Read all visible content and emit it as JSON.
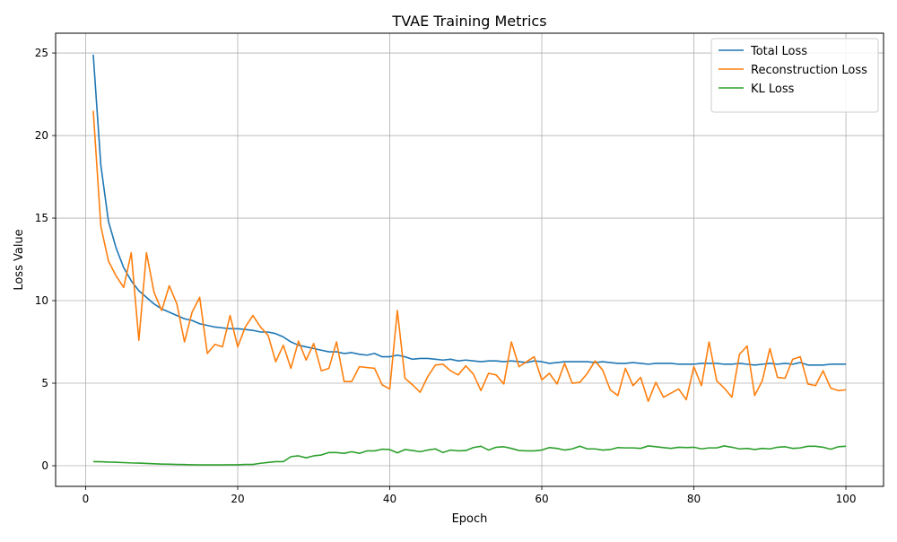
{
  "chart_data": {
    "type": "line",
    "title": "TVAE Training Metrics",
    "xlabel": "Epoch",
    "ylabel": "Loss Value",
    "xlim": [
      -3.95,
      104.95
    ],
    "ylim": [
      -1.25,
      26.2
    ],
    "xticks": [
      0,
      20,
      40,
      60,
      80,
      100
    ],
    "yticks": [
      0,
      5,
      10,
      15,
      20,
      25
    ],
    "grid": true,
    "legend_position": "top-right",
    "x": [
      1,
      2,
      3,
      4,
      5,
      6,
      7,
      8,
      9,
      10,
      11,
      12,
      13,
      14,
      15,
      16,
      17,
      18,
      19,
      20,
      21,
      22,
      23,
      24,
      25,
      26,
      27,
      28,
      29,
      30,
      31,
      32,
      33,
      34,
      35,
      36,
      37,
      38,
      39,
      40,
      41,
      42,
      43,
      44,
      45,
      46,
      47,
      48,
      49,
      50,
      51,
      52,
      53,
      54,
      55,
      56,
      57,
      58,
      59,
      60,
      61,
      62,
      63,
      64,
      65,
      66,
      67,
      68,
      69,
      70,
      71,
      72,
      73,
      74,
      75,
      76,
      77,
      78,
      79,
      80,
      81,
      82,
      83,
      84,
      85,
      86,
      87,
      88,
      89,
      90,
      91,
      92,
      93,
      94,
      95,
      96,
      97,
      98,
      99,
      100
    ],
    "series": [
      {
        "name": "Total Loss",
        "color": "#1f77b4",
        "values": [
          24.9,
          18.2,
          14.8,
          13.2,
          12.0,
          11.2,
          10.6,
          10.2,
          9.8,
          9.5,
          9.3,
          9.1,
          8.9,
          8.8,
          8.6,
          8.5,
          8.4,
          8.35,
          8.3,
          8.3,
          8.25,
          8.2,
          8.1,
          8.1,
          8.0,
          7.8,
          7.5,
          7.3,
          7.2,
          7.1,
          7.0,
          6.9,
          6.9,
          6.8,
          6.85,
          6.75,
          6.7,
          6.8,
          6.6,
          6.6,
          6.7,
          6.6,
          6.45,
          6.5,
          6.5,
          6.45,
          6.4,
          6.45,
          6.35,
          6.4,
          6.35,
          6.3,
          6.35,
          6.35,
          6.3,
          6.35,
          6.3,
          6.25,
          6.35,
          6.3,
          6.2,
          6.25,
          6.3,
          6.3,
          6.3,
          6.3,
          6.25,
          6.3,
          6.25,
          6.2,
          6.2,
          6.25,
          6.2,
          6.15,
          6.2,
          6.2,
          6.2,
          6.15,
          6.15,
          6.15,
          6.2,
          6.2,
          6.2,
          6.15,
          6.15,
          6.2,
          6.15,
          6.1,
          6.15,
          6.2,
          6.15,
          6.2,
          6.15,
          6.25,
          6.1,
          6.1,
          6.1,
          6.15,
          6.15,
          6.15
        ]
      },
      {
        "name": "Reconstruction Loss",
        "color": "#ff7f0e",
        "values": [
          21.5,
          14.5,
          12.4,
          11.5,
          10.8,
          12.9,
          7.6,
          12.9,
          10.5,
          9.4,
          10.9,
          9.8,
          7.5,
          9.3,
          10.2,
          6.8,
          7.35,
          7.2,
          9.1,
          7.2,
          8.4,
          9.1,
          8.4,
          7.9,
          6.3,
          7.3,
          5.9,
          7.55,
          6.4,
          7.4,
          5.75,
          5.9,
          7.5,
          5.1,
          5.1,
          6.0,
          5.95,
          5.9,
          4.9,
          4.65,
          9.4,
          5.3,
          4.9,
          4.45,
          5.4,
          6.1,
          6.15,
          5.75,
          5.5,
          6.05,
          5.55,
          4.55,
          5.6,
          5.5,
          4.95,
          7.5,
          6.0,
          6.3,
          6.6,
          5.2,
          5.6,
          4.95,
          6.2,
          5.0,
          5.05,
          5.6,
          6.35,
          5.8,
          4.6,
          4.25,
          5.9,
          4.85,
          5.35,
          3.9,
          5.05,
          4.15,
          4.4,
          4.65,
          4.0,
          6.0,
          4.85,
          7.5,
          5.15,
          4.7,
          4.15,
          6.75,
          7.25,
          4.25,
          5.15,
          7.1,
          5.35,
          5.3,
          6.45,
          6.6,
          4.95,
          4.85,
          5.75,
          4.7,
          4.55,
          4.6
        ]
      },
      {
        "name": "KL Loss",
        "color": "#2ca02c",
        "values": [
          0.25,
          0.24,
          0.22,
          0.21,
          0.19,
          0.17,
          0.16,
          0.14,
          0.12,
          0.1,
          0.09,
          0.08,
          0.07,
          0.06,
          0.05,
          0.05,
          0.05,
          0.05,
          0.06,
          0.06,
          0.08,
          0.08,
          0.15,
          0.2,
          0.25,
          0.25,
          0.55,
          0.6,
          0.48,
          0.6,
          0.65,
          0.8,
          0.8,
          0.75,
          0.85,
          0.75,
          0.9,
          0.9,
          1.0,
          0.98,
          0.78,
          0.98,
          0.92,
          0.85,
          0.95,
          1.02,
          0.8,
          0.95,
          0.9,
          0.92,
          1.1,
          1.18,
          0.95,
          1.12,
          1.15,
          1.05,
          0.92,
          0.9,
          0.9,
          0.95,
          1.1,
          1.05,
          0.95,
          1.02,
          1.18,
          1.02,
          1.02,
          0.95,
          0.98,
          1.1,
          1.08,
          1.08,
          1.05,
          1.2,
          1.15,
          1.1,
          1.05,
          1.12,
          1.1,
          1.12,
          1.02,
          1.08,
          1.08,
          1.2,
          1.12,
          1.02,
          1.05,
          0.98,
          1.05,
          1.02,
          1.12,
          1.15,
          1.05,
          1.08,
          1.18,
          1.18,
          1.12,
          1.0,
          1.15,
          1.18
        ]
      }
    ]
  }
}
